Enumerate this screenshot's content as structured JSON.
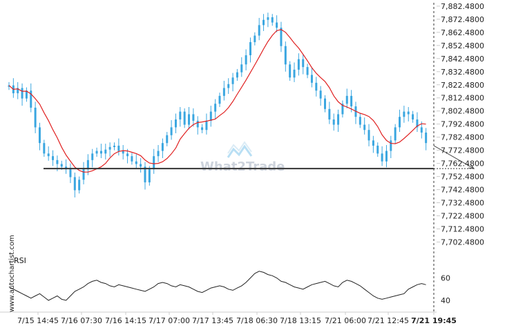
{
  "watermark": "What2Trade",
  "source_label": "www.autochartist.com",
  "rsi_title": "RSI",
  "colors": {
    "candle": "#3aa6e0",
    "moving_average": "#e02020",
    "support_line": "#333333",
    "rsi_line": "#222222",
    "axis_line": "#cccccc"
  },
  "chart_data": [
    {
      "type": "candlestick",
      "title": "",
      "x_ticks": [
        "7/15 14:45",
        "7/16 07:30",
        "7/16 14:15",
        "7/17 07:00",
        "7/17 13:45",
        "7/18 06:30",
        "7/18 13:15",
        "7/21 06:00",
        "7/21 12:45",
        "7/21 19:45"
      ],
      "y_ticks": [
        "7,882.4800",
        "7,872.4800",
        "7,862.4800",
        "7,852.4800",
        "7,842.4800",
        "7,832.4800",
        "7,822.4800",
        "7,812.4800",
        "7,802.4800",
        "7,792.4800",
        "7,782.4800",
        "7,772.4800",
        "7,762.4800",
        "7,752.4800",
        "7,742.4800",
        "7,732.4800",
        "7,722.4800",
        "7,712.4800",
        "7,702.4800"
      ],
      "ylim": [
        7698,
        7884
      ],
      "support_level": 7758.5,
      "support_label": "",
      "projection": {
        "from": 7776,
        "to": 7758.5
      },
      "close_path": [
        7822,
        7816,
        7820,
        7812,
        7818,
        7805,
        7790,
        7778,
        7770,
        7768,
        7765,
        7762,
        7760,
        7758,
        7752,
        7742,
        7750,
        7758,
        7765,
        7770,
        7772,
        7770,
        7773,
        7775,
        7776,
        7772,
        7770,
        7768,
        7764,
        7762,
        7760,
        7748,
        7758,
        7768,
        7772,
        7778,
        7784,
        7790,
        7796,
        7802,
        7792,
        7800,
        7795,
        7790,
        7788,
        7795,
        7802,
        7808,
        7814,
        7820,
        7823,
        7828,
        7832,
        7838,
        7845,
        7855,
        7860,
        7868,
        7872,
        7874,
        7870,
        7866,
        7852,
        7838,
        7828,
        7834,
        7842,
        7836,
        7830,
        7824,
        7818,
        7812,
        7804,
        7796,
        7792,
        7800,
        7808,
        7814,
        7806,
        7798,
        7792,
        7788,
        7780,
        7776,
        7770,
        7764,
        7772,
        7780,
        7790,
        7798,
        7802,
        7800,
        7796,
        7790,
        7786,
        7778
      ],
      "series": [
        {
          "name": "",
          "type": "moving-average"
        }
      ]
    },
    {
      "type": "line",
      "title": "RSI",
      "y_ticks": [
        "60",
        "40"
      ],
      "ylim": [
        32,
        72
      ],
      "values": [
        52,
        50,
        48,
        46,
        44,
        42,
        44,
        46,
        43,
        40,
        42,
        44,
        41,
        40,
        44,
        48,
        50,
        52,
        55,
        57,
        58,
        56,
        55,
        53,
        52,
        54,
        53,
        52,
        51,
        50,
        49,
        48,
        50,
        52,
        55,
        56,
        55,
        53,
        52,
        54,
        53,
        52,
        50,
        48,
        47,
        49,
        51,
        52,
        53,
        52,
        50,
        49,
        51,
        53,
        56,
        60,
        64,
        66,
        65,
        63,
        62,
        60,
        57,
        56,
        54,
        52,
        51,
        50,
        52,
        54,
        55,
        56,
        57,
        55,
        53,
        52,
        56,
        58,
        57,
        55,
        53,
        50,
        47,
        44,
        42,
        41,
        42,
        43,
        44,
        45,
        46,
        50,
        52,
        54,
        55,
        54
      ]
    }
  ]
}
